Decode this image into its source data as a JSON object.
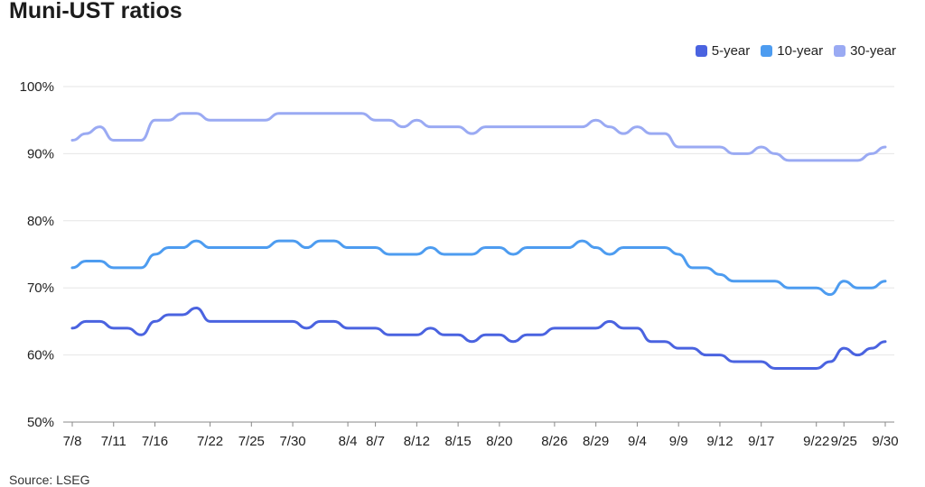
{
  "title": "Muni-UST ratios",
  "source": "Source: LSEG",
  "chart_data": {
    "type": "line",
    "title": "Muni-UST ratios",
    "xlabel": "",
    "ylabel": "",
    "ylim": [
      50,
      100
    ],
    "y_ticks": [
      "100%",
      "90%",
      "80%",
      "70%",
      "60%",
      "50%"
    ],
    "y_tick_values": [
      100,
      90,
      80,
      70,
      60,
      50
    ],
    "x_ticks": [
      "7/8",
      "7/11",
      "7/16",
      "7/22",
      "7/25",
      "7/30",
      "8/4",
      "8/7",
      "8/12",
      "8/15",
      "8/20",
      "8/26",
      "8/29",
      "9/4",
      "9/9",
      "9/12",
      "9/17",
      "9/22",
      "9/25",
      "9/30"
    ],
    "x": [
      "7/8",
      "7/9",
      "7/10",
      "7/11",
      "7/12",
      "7/15",
      "7/16",
      "7/17",
      "7/18",
      "7/19",
      "7/22",
      "7/23",
      "7/24",
      "7/25",
      "7/26",
      "7/29",
      "7/30",
      "7/31",
      "8/1",
      "8/2",
      "8/5",
      "8/6",
      "8/7",
      "8/8",
      "8/9",
      "8/12",
      "8/13",
      "8/14",
      "8/15",
      "8/16",
      "8/19",
      "8/20",
      "8/21",
      "8/22",
      "8/23",
      "8/26",
      "8/27",
      "8/28",
      "8/29",
      "8/30",
      "9/3",
      "9/4",
      "9/5",
      "9/6",
      "9/9",
      "9/10",
      "9/11",
      "9/12",
      "9/13",
      "9/16",
      "9/17",
      "9/18",
      "9/19",
      "9/20",
      "9/23",
      "9/24",
      "9/25",
      "9/26",
      "9/27",
      "9/30"
    ],
    "legend_position": "top-right",
    "grid": true,
    "series": [
      {
        "name": "5-year",
        "color": "#4a63e0",
        "values": [
          64,
          65,
          65,
          64,
          64,
          63,
          65,
          66,
          66,
          67,
          65,
          65,
          65,
          65,
          65,
          65,
          65,
          64,
          65,
          65,
          64,
          64,
          64,
          63,
          63,
          63,
          64,
          63,
          63,
          62,
          63,
          63,
          62,
          63,
          63,
          64,
          64,
          64,
          64,
          65,
          64,
          64,
          62,
          62,
          61,
          61,
          60,
          60,
          59,
          59,
          59,
          58,
          58,
          58,
          58,
          59,
          61,
          60,
          61,
          62
        ]
      },
      {
        "name": "10-year",
        "color": "#4d9cf0",
        "values": [
          73,
          74,
          74,
          73,
          73,
          73,
          75,
          76,
          76,
          77,
          76,
          76,
          76,
          76,
          76,
          77,
          77,
          76,
          77,
          77,
          76,
          76,
          76,
          75,
          75,
          75,
          76,
          75,
          75,
          75,
          76,
          76,
          75,
          76,
          76,
          76,
          76,
          77,
          76,
          75,
          76,
          76,
          76,
          76,
          75,
          73,
          73,
          72,
          71,
          71,
          71,
          71,
          70,
          70,
          70,
          69,
          71,
          70,
          70,
          71
        ]
      },
      {
        "name": "30-year",
        "color": "#9aaaf3",
        "values": [
          92,
          93,
          94,
          92,
          92,
          92,
          95,
          95,
          96,
          96,
          95,
          95,
          95,
          95,
          95,
          96,
          96,
          96,
          96,
          96,
          96,
          96,
          95,
          95,
          94,
          95,
          94,
          94,
          94,
          93,
          94,
          94,
          94,
          94,
          94,
          94,
          94,
          94,
          95,
          94,
          93,
          94,
          93,
          93,
          91,
          91,
          91,
          91,
          90,
          90,
          91,
          90,
          89,
          89,
          89,
          89,
          89,
          89,
          90,
          91
        ]
      }
    ]
  }
}
